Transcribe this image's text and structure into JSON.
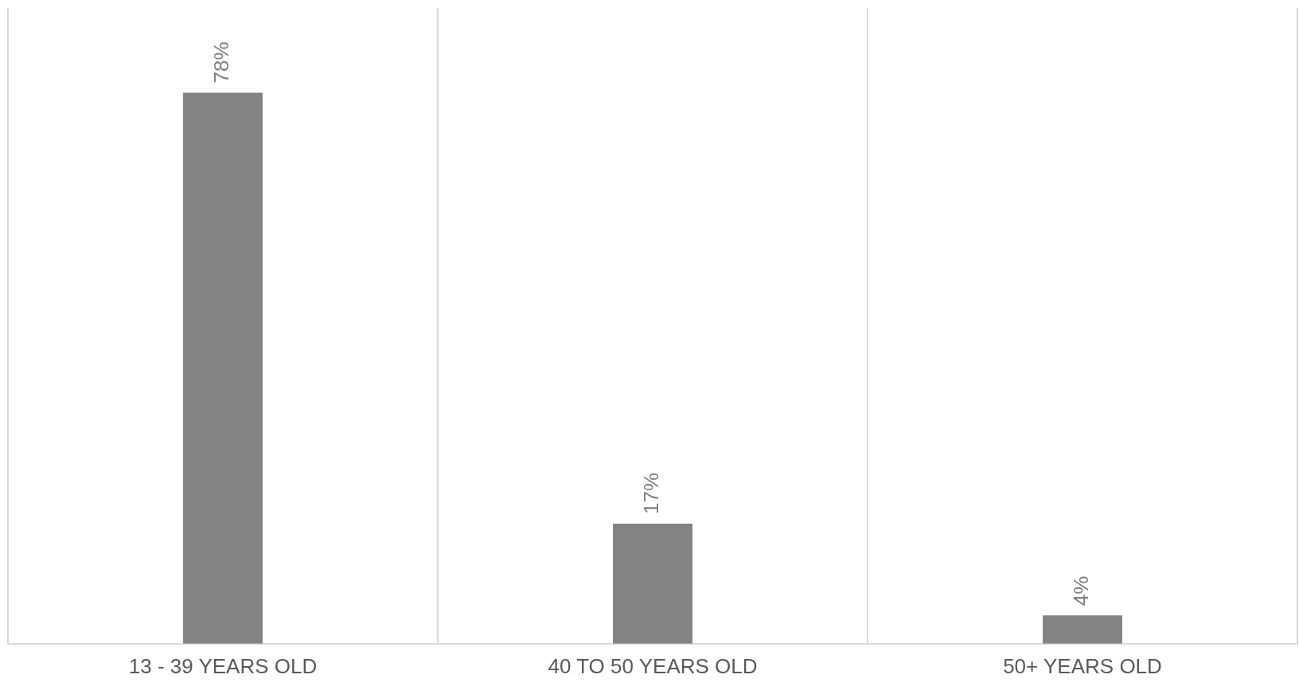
{
  "chart_data": {
    "type": "bar",
    "categories": [
      "13 - 39 YEARS OLD",
      "40 TO 50 YEARS OLD",
      "50+ YEARS OLD"
    ],
    "values": [
      78,
      17,
      4
    ],
    "value_labels": [
      "78%",
      "17%",
      "4%"
    ],
    "color": "#838383",
    "grid": "x",
    "legend": false,
    "tick_labels": "x"
  }
}
